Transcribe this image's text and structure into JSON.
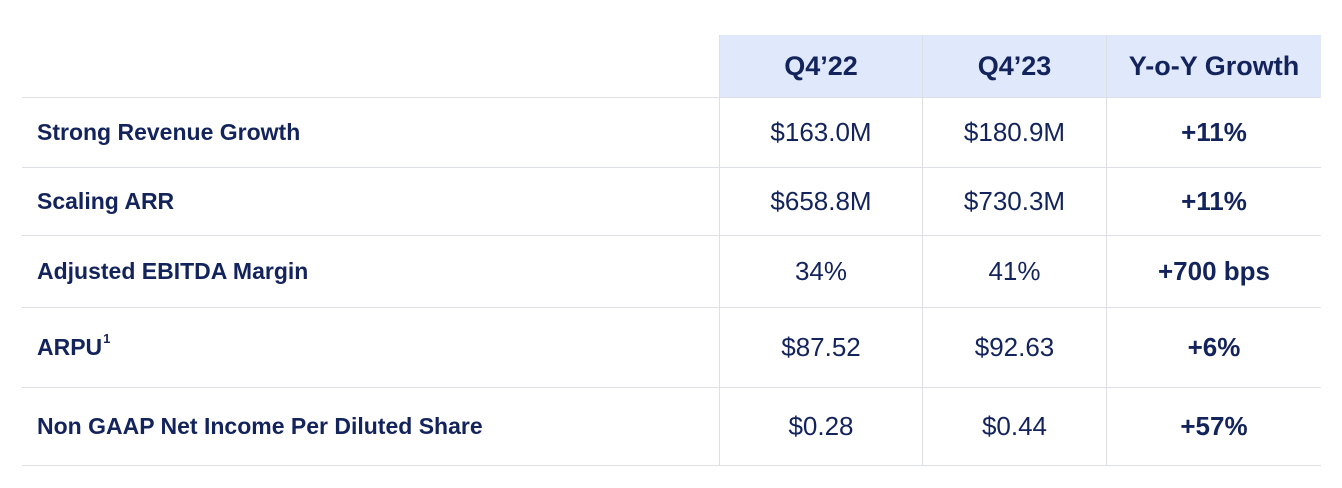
{
  "header": {
    "col1": "Q4’22",
    "col2": "Q4’23",
    "col3": "Y-o-Y Growth"
  },
  "rows": [
    {
      "label": "Strong Revenue Growth",
      "sup": "",
      "q422": "$163.0M",
      "q423": "$180.9M",
      "yoy": "+11%"
    },
    {
      "label": "Scaling ARR",
      "sup": "",
      "q422": "$658.8M",
      "q423": "$730.3M",
      "yoy": "+11%"
    },
    {
      "label": "Adjusted EBITDA Margin",
      "sup": "",
      "q422": "34%",
      "q423": "41%",
      "yoy": "+700 bps"
    },
    {
      "label": "ARPU",
      "sup": "1",
      "q422": "$87.52",
      "q423": "$92.63",
      "yoy": "+6%"
    },
    {
      "label": "Non GAAP Net Income Per Diluted Share",
      "sup": "",
      "q422": "$0.28",
      "q423": "$0.44",
      "yoy": "+57%"
    }
  ],
  "colors": {
    "text": "#13235b",
    "header_bg": "#e0e8fb",
    "divider": "#dcdfe6"
  }
}
